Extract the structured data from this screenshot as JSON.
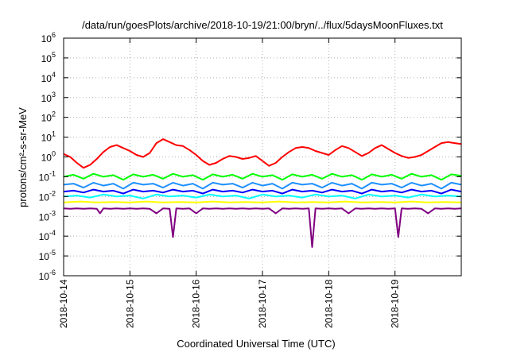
{
  "chart_data": {
    "type": "line",
    "title": "/data/run/goesPlots/archive/2018-10-19/21:00/bryn/../flux/5daysMoonFluxes.txt",
    "xlabel": "Coordinated Universal Time (UTC)",
    "ylabel": "protons/cm²-s-sr-MeV",
    "y_scale": "log",
    "ylim_exp": [
      -6,
      6
    ],
    "xlim": [
      "2018-10-14",
      "2018-10-20"
    ],
    "grid": true,
    "x_ticks": [
      "2018-10-14",
      "2018-10-15",
      "2018-10-16",
      "2018-10-17",
      "2018-10-18",
      "2018-10-19"
    ],
    "y_ticks": [
      {
        "base": "10",
        "exp": "-6"
      },
      {
        "base": "10",
        "exp": "-5"
      },
      {
        "base": "10",
        "exp": "-4"
      },
      {
        "base": "10",
        "exp": "-3"
      },
      {
        "base": "10",
        "exp": "-2"
      },
      {
        "base": "10",
        "exp": "-1"
      },
      {
        "base": "10",
        "exp": "0"
      },
      {
        "base": "10",
        "exp": "1"
      },
      {
        "base": "10",
        "exp": "2"
      },
      {
        "base": "10",
        "exp": "3"
      },
      {
        "base": "10",
        "exp": "4"
      },
      {
        "base": "10",
        "exp": "5"
      },
      {
        "base": "10",
        "exp": "6"
      }
    ],
    "series": [
      {
        "color": "#800080",
        "day": [
          0,
          0.1,
          0.2,
          0.3,
          0.4,
          0.5,
          0.55,
          0.6,
          0.7,
          0.8,
          0.9,
          1,
          1.1,
          1.2,
          1.3,
          1.4,
          1.5,
          1.6,
          1.65,
          1.7,
          1.8,
          1.9,
          2,
          2.1,
          2.2,
          2.3,
          2.4,
          2.5,
          2.6,
          2.7,
          2.8,
          2.9,
          3,
          3.1,
          3.2,
          3.3,
          3.4,
          3.5,
          3.6,
          3.7,
          3.75,
          3.8,
          3.9,
          4,
          4.1,
          4.2,
          4.3,
          4.4,
          4.5,
          4.6,
          4.7,
          4.8,
          4.9,
          5,
          5.05,
          5.1,
          5.2,
          5.3,
          5.4,
          5.5,
          5.6,
          5.7,
          5.8,
          5.9,
          6
        ],
        "log10": [
          -2.6,
          -2.62,
          -2.6,
          -2.62,
          -2.6,
          -2.62,
          -2.85,
          -2.6,
          -2.62,
          -2.6,
          -2.62,
          -2.6,
          -2.62,
          -2.6,
          -2.62,
          -2.85,
          -2.6,
          -2.62,
          -4.05,
          -2.6,
          -2.62,
          -2.6,
          -2.85,
          -2.6,
          -2.62,
          -2.6,
          -2.62,
          -2.6,
          -2.62,
          -2.6,
          -2.62,
          -2.6,
          -2.62,
          -2.6,
          -2.85,
          -2.6,
          -2.62,
          -2.6,
          -2.62,
          -2.6,
          -4.55,
          -2.6,
          -2.62,
          -2.6,
          -2.62,
          -2.6,
          -2.85,
          -2.6,
          -2.62,
          -2.6,
          -2.62,
          -2.6,
          -2.62,
          -2.6,
          -4.05,
          -2.6,
          -2.62,
          -2.6,
          -2.62,
          -2.85,
          -2.6,
          -2.62,
          -2.6,
          -2.62,
          -2.6
        ]
      },
      {
        "color": "#ffff00",
        "day": [
          0,
          0.25,
          0.5,
          0.75,
          1,
          1.25,
          1.5,
          1.75,
          2,
          2.25,
          2.5,
          2.75,
          3,
          3.25,
          3.5,
          3.75,
          4,
          4.25,
          4.5,
          4.75,
          5,
          5.25,
          5.5,
          5.75,
          6
        ],
        "log10": [
          -2.3,
          -2.25,
          -2.3,
          -2.28,
          -2.3,
          -2.25,
          -2.3,
          -2.28,
          -2.3,
          -2.25,
          -2.3,
          -2.28,
          -2.3,
          -2.25,
          -2.3,
          -2.28,
          -2.3,
          -2.25,
          -2.3,
          -2.28,
          -2.3,
          -2.25,
          -2.3,
          -2.28,
          -2.3
        ]
      },
      {
        "color": "#00ffff",
        "day": [
          0,
          0.2,
          0.4,
          0.6,
          0.8,
          1,
          1.2,
          1.4,
          1.6,
          1.8,
          2,
          2.2,
          2.4,
          2.6,
          2.8,
          3,
          3.2,
          3.4,
          3.6,
          3.8,
          4,
          4.2,
          4.4,
          4.6,
          4.8,
          5,
          5.2,
          5.4,
          5.6,
          5.8,
          6
        ],
        "log10": [
          -2,
          -1.95,
          -2.05,
          -1.9,
          -2,
          -1.95,
          -2.1,
          -1.9,
          -2,
          -1.95,
          -2.05,
          -1.9,
          -2,
          -1.95,
          -2.1,
          -1.9,
          -2,
          -1.95,
          -2.05,
          -1.9,
          -2,
          -1.95,
          -2.1,
          -1.9,
          -2,
          -1.95,
          -2.05,
          -1.9,
          -2,
          -1.95,
          -2
        ]
      },
      {
        "color": "#0000ff",
        "day": [
          0,
          0.15,
          0.3,
          0.45,
          0.6,
          0.75,
          0.9,
          1.05,
          1.2,
          1.35,
          1.5,
          1.65,
          1.8,
          1.95,
          2.1,
          2.25,
          2.4,
          2.55,
          2.7,
          2.85,
          3,
          3.15,
          3.3,
          3.45,
          3.6,
          3.75,
          3.9,
          4.05,
          4.2,
          4.35,
          4.5,
          4.65,
          4.8,
          4.95,
          5.1,
          5.25,
          5.4,
          5.55,
          5.7,
          5.85,
          6
        ],
        "log10": [
          -1.75,
          -1.7,
          -1.8,
          -1.65,
          -1.75,
          -1.7,
          -1.85,
          -1.65,
          -1.75,
          -1.7,
          -1.8,
          -1.65,
          -1.75,
          -1.7,
          -1.85,
          -1.65,
          -1.75,
          -1.7,
          -1.8,
          -1.65,
          -1.75,
          -1.7,
          -1.85,
          -1.65,
          -1.75,
          -1.7,
          -1.8,
          -1.65,
          -1.75,
          -1.7,
          -1.85,
          -1.65,
          -1.75,
          -1.7,
          -1.8,
          -1.65,
          -1.75,
          -1.7,
          -1.85,
          -1.65,
          -1.75
        ]
      },
      {
        "color": "#1e90ff",
        "day": [
          0,
          0.15,
          0.3,
          0.45,
          0.6,
          0.75,
          0.9,
          1.05,
          1.2,
          1.35,
          1.5,
          1.65,
          1.8,
          1.95,
          2.1,
          2.25,
          2.4,
          2.55,
          2.7,
          2.85,
          3,
          3.15,
          3.3,
          3.45,
          3.6,
          3.75,
          3.9,
          4.05,
          4.2,
          4.35,
          4.5,
          4.65,
          4.8,
          4.95,
          5.1,
          5.25,
          5.4,
          5.55,
          5.7,
          5.85,
          6
        ],
        "log10": [
          -1.4,
          -1.35,
          -1.55,
          -1.3,
          -1.45,
          -1.35,
          -1.6,
          -1.3,
          -1.4,
          -1.35,
          -1.55,
          -1.3,
          -1.45,
          -1.35,
          -1.6,
          -1.3,
          -1.4,
          -1.35,
          -1.55,
          -1.3,
          -1.45,
          -1.35,
          -1.6,
          -1.3,
          -1.4,
          -1.35,
          -1.55,
          -1.3,
          -1.45,
          -1.35,
          -1.6,
          -1.3,
          -1.4,
          -1.35,
          -1.55,
          -1.3,
          -1.45,
          -1.35,
          -1.6,
          -1.3,
          -1.4
        ]
      },
      {
        "color": "#00ff00",
        "day": [
          0,
          0.15,
          0.3,
          0.45,
          0.6,
          0.75,
          0.9,
          1.05,
          1.2,
          1.35,
          1.5,
          1.65,
          1.8,
          1.95,
          2.1,
          2.25,
          2.4,
          2.55,
          2.7,
          2.85,
          3,
          3.15,
          3.3,
          3.45,
          3.6,
          3.75,
          3.9,
          4.05,
          4.2,
          4.35,
          4.5,
          4.65,
          4.8,
          4.95,
          5.1,
          5.25,
          5.4,
          5.55,
          5.7,
          5.85,
          6
        ],
        "log10": [
          -1,
          -0.9,
          -1.1,
          -0.85,
          -1,
          -0.92,
          -1.15,
          -0.88,
          -1,
          -0.9,
          -1.1,
          -0.85,
          -1,
          -0.92,
          -1.15,
          -0.88,
          -1,
          -0.9,
          -1.1,
          -0.85,
          -1,
          -0.92,
          -1.15,
          -0.88,
          -1,
          -0.9,
          -1.1,
          -0.85,
          -1,
          -0.92,
          -1.15,
          -0.88,
          -1,
          -0.9,
          -1.1,
          -0.85,
          -1,
          -0.92,
          -1.15,
          -0.88,
          -0.95
        ]
      },
      {
        "color": "#ff0000",
        "day": [
          0,
          0.1,
          0.2,
          0.3,
          0.4,
          0.5,
          0.6,
          0.7,
          0.8,
          0.9,
          1,
          1.1,
          1.2,
          1.3,
          1.4,
          1.5,
          1.6,
          1.7,
          1.8,
          1.9,
          2,
          2.1,
          2.2,
          2.3,
          2.4,
          2.5,
          2.6,
          2.7,
          2.8,
          2.9,
          3,
          3.1,
          3.2,
          3.3,
          3.4,
          3.5,
          3.6,
          3.7,
          3.8,
          3.9,
          4,
          4.1,
          4.2,
          4.3,
          4.4,
          4.5,
          4.6,
          4.7,
          4.8,
          4.9,
          5,
          5.1,
          5.2,
          5.3,
          5.4,
          5.5,
          5.6,
          5.7,
          5.8,
          5.9,
          6
        ],
        "log10": [
          0.15,
          0,
          -0.3,
          -0.55,
          -0.4,
          -0.1,
          0.25,
          0.5,
          0.6,
          0.45,
          0.3,
          0.1,
          0,
          0.2,
          0.7,
          0.9,
          0.75,
          0.6,
          0.55,
          0.35,
          0.1,
          -0.2,
          -0.4,
          -0.3,
          -0.1,
          0.05,
          0,
          -0.1,
          -0.05,
          0.05,
          -0.2,
          -0.45,
          -0.3,
          0,
          0.25,
          0.45,
          0.5,
          0.45,
          0.3,
          0.2,
          0.1,
          0.35,
          0.55,
          0.45,
          0.25,
          0.05,
          0.2,
          0.45,
          0.6,
          0.4,
          0.2,
          0.05,
          -0.05,
          0,
          0.1,
          0.3,
          0.5,
          0.7,
          0.75,
          0.7,
          0.65
        ]
      }
    ]
  }
}
